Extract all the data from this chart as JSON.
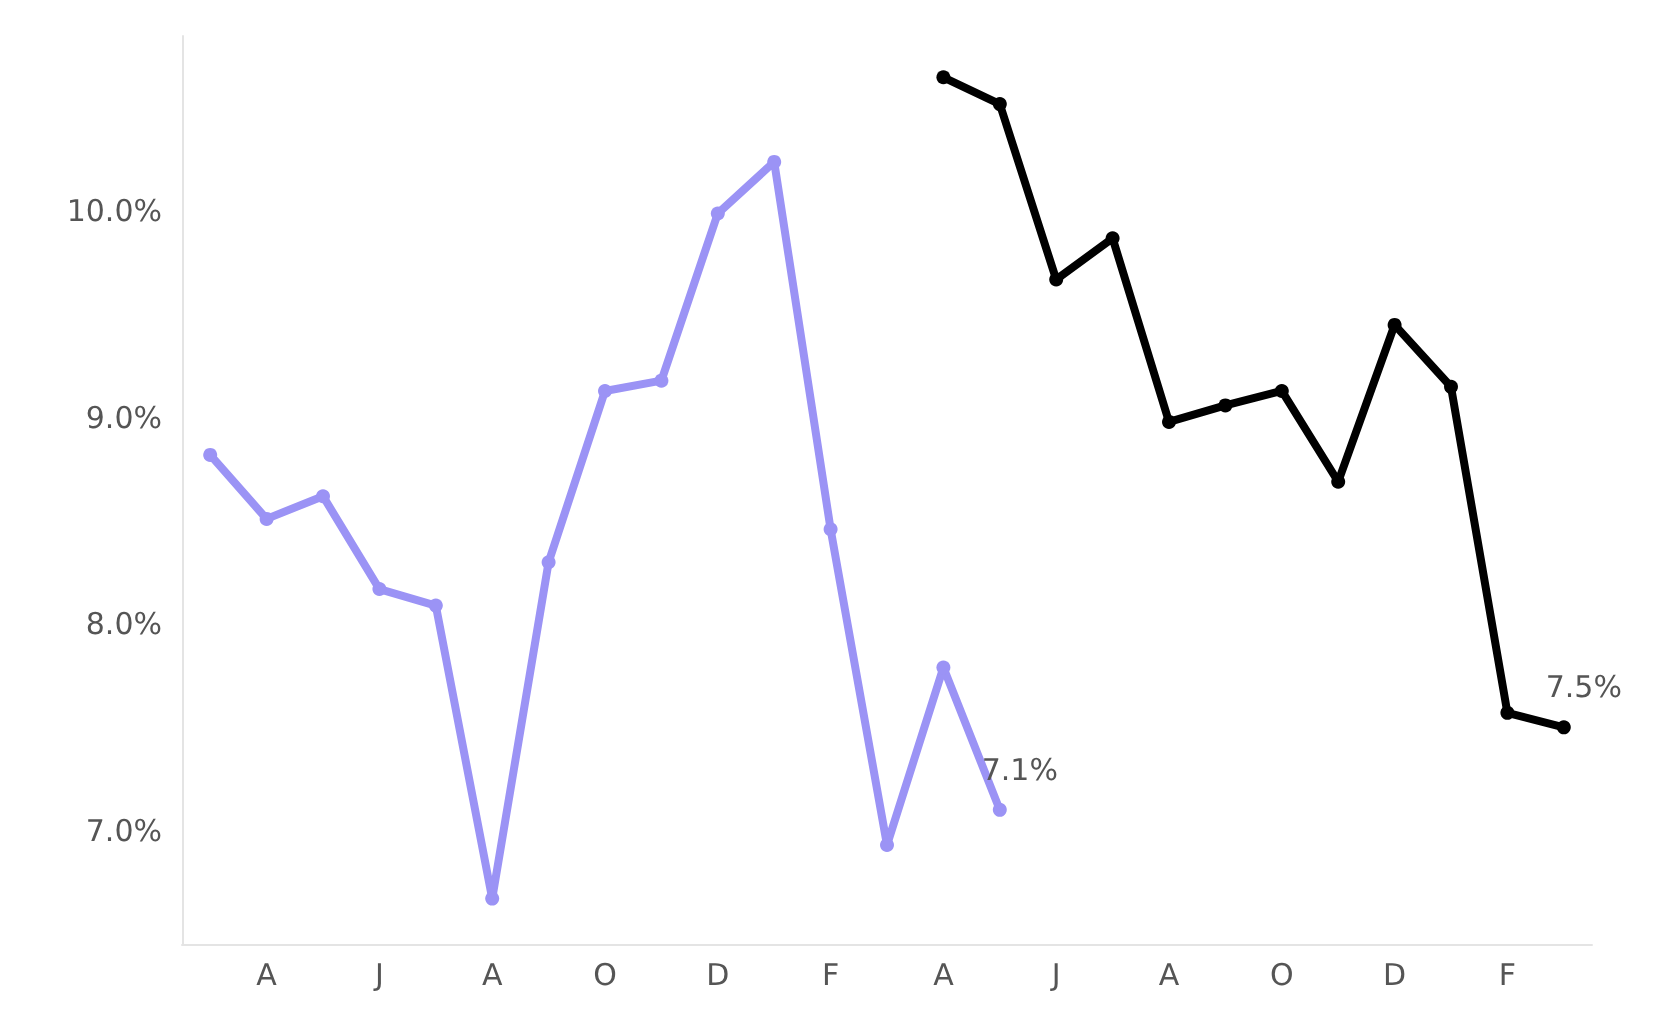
{
  "chart_data": {
    "type": "line",
    "categories": [
      null,
      "A",
      null,
      "J",
      null,
      "A",
      null,
      "O",
      null,
      "D",
      null,
      "F",
      null,
      "A",
      null,
      "J",
      null,
      "A",
      null,
      "O",
      null,
      "D",
      null,
      "F",
      null
    ],
    "series": [
      {
        "color": "#9b93f5",
        "values": [
          8.82,
          8.51,
          8.62,
          8.17,
          8.09,
          6.67,
          8.3,
          9.13,
          9.18,
          9.99,
          10.24,
          8.46,
          6.93,
          7.79,
          7.1,
          null,
          null,
          null,
          null,
          null,
          null,
          null,
          null,
          null,
          null
        ],
        "value_labels": [
          null,
          null,
          null,
          null,
          null,
          null,
          null,
          null,
          null,
          null,
          null,
          null,
          null,
          null,
          "7.1%",
          null,
          null,
          null,
          null,
          null,
          null,
          null,
          null,
          null,
          null
        ]
      },
      {
        "color": "#000000",
        "values": [
          null,
          null,
          null,
          null,
          null,
          null,
          null,
          null,
          null,
          null,
          null,
          null,
          null,
          10.65,
          10.52,
          9.67,
          9.87,
          8.98,
          9.06,
          9.13,
          8.69,
          9.45,
          9.15,
          7.57,
          7.5
        ],
        "value_labels": [
          null,
          null,
          null,
          null,
          null,
          null,
          null,
          null,
          null,
          null,
          null,
          null,
          null,
          null,
          null,
          null,
          null,
          null,
          null,
          null,
          null,
          null,
          null,
          null,
          "7.5%"
        ]
      }
    ],
    "ylim": [
      6.45,
      10.85
    ],
    "yticks": [
      {
        "value": 7,
        "label": "7.0%"
      },
      {
        "value": 8,
        "label": "8.0%"
      },
      {
        "value": 9,
        "label": "9.0%"
      },
      {
        "value": 10,
        "label": "10.0%"
      }
    ],
    "grid": false,
    "marker": "circle",
    "line_style": "solid"
  }
}
